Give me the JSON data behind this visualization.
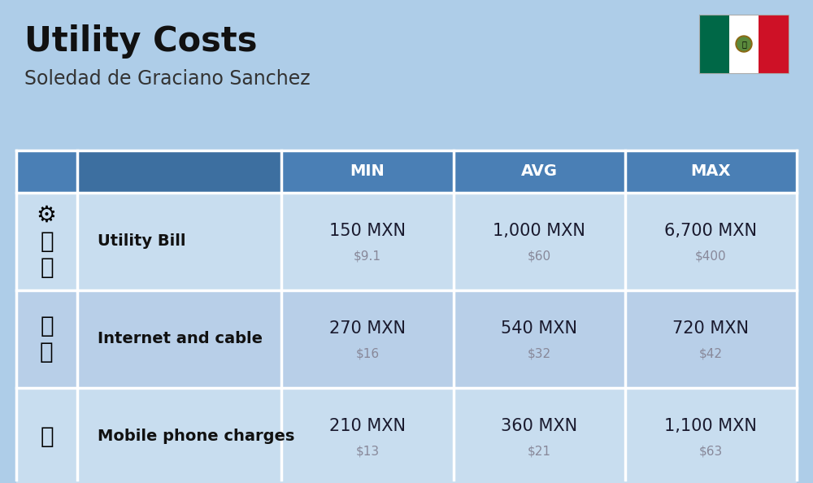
{
  "title": "Utility Costs",
  "subtitle": "Soledad de Graciano Sanchez",
  "background_color": "#aecde8",
  "header_bg_color": "#4a7fb5",
  "header_text_color": "#ffffff",
  "row_bg_color_light": "#c8ddef",
  "row_bg_color_dark": "#b8cfe8",
  "icon_col_bg": "#b0c8e0",
  "table_border_color": "#ffffff",
  "col_headers": [
    "MIN",
    "AVG",
    "MAX"
  ],
  "rows": [
    {
      "label": "Utility Bill",
      "min_mxn": "150 MXN",
      "min_usd": "$9.1",
      "avg_mxn": "1,000 MXN",
      "avg_usd": "$60",
      "max_mxn": "6,700 MXN",
      "max_usd": "$400"
    },
    {
      "label": "Internet and cable",
      "min_mxn": "270 MXN",
      "min_usd": "$16",
      "avg_mxn": "540 MXN",
      "avg_usd": "$32",
      "max_mxn": "720 MXN",
      "max_usd": "$42"
    },
    {
      "label": "Mobile phone charges",
      "min_mxn": "210 MXN",
      "min_usd": "$13",
      "avg_mxn": "360 MXN",
      "avg_usd": "$21",
      "max_mxn": "1,100 MXN",
      "max_usd": "$63"
    }
  ],
  "flag_colors": [
    "#006847",
    "#ffffff",
    "#ce1126"
  ],
  "title_color": "#111111",
  "subtitle_color": "#333333",
  "mxn_color": "#1a1a2e",
  "usd_color": "#888899",
  "label_color": "#111111",
  "mxn_fontsize": 15,
  "usd_fontsize": 11,
  "label_fontsize": 14,
  "header_fontsize": 14,
  "title_fontsize": 30,
  "subtitle_fontsize": 17,
  "fig_width": 10.0,
  "fig_height": 5.94,
  "dpi": 100
}
